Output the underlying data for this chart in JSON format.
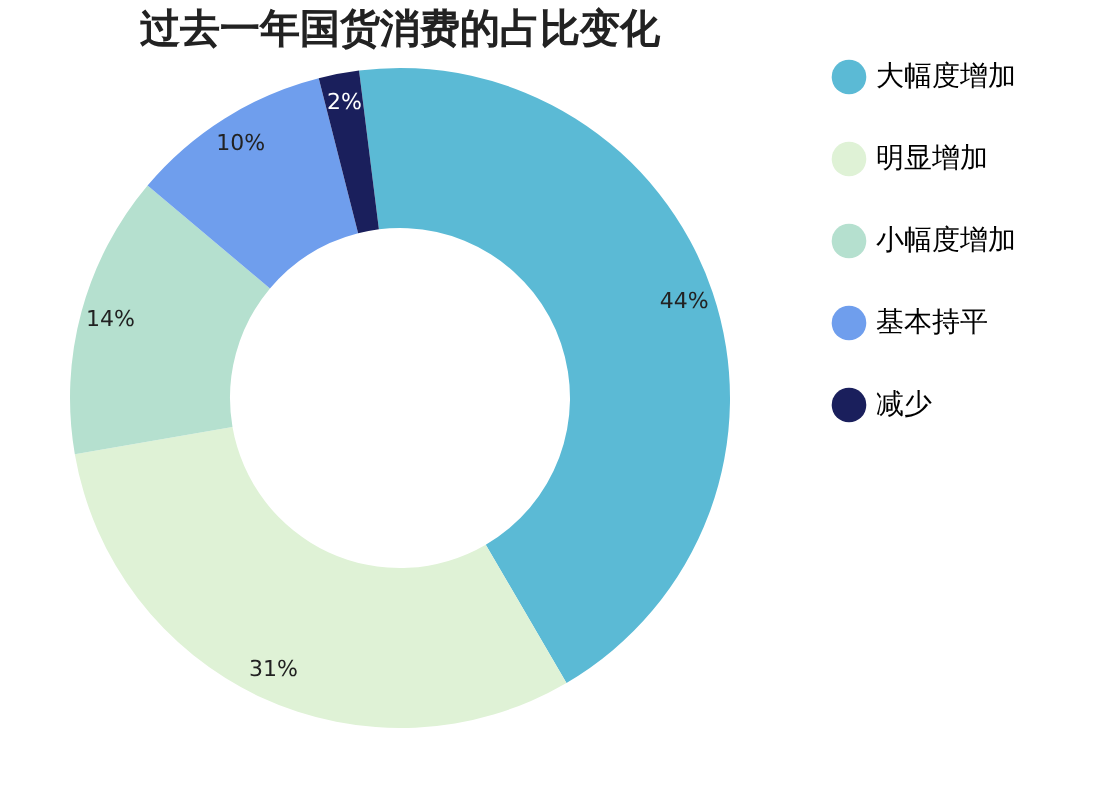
{
  "chart_data": {
    "type": "donut",
    "title": "过去一年国货消费的占比变化",
    "categories": [
      "大幅度增加",
      "明显增加",
      "小幅度增加",
      "基本持平",
      "减少"
    ],
    "values": [
      44,
      31,
      14,
      10,
      2
    ],
    "colors": [
      "#5bbad5",
      "#dff2d6",
      "#b5e0cf",
      "#6f9eed",
      "#1a1f5c"
    ],
    "value_labels": [
      "44%",
      "31%",
      "14%",
      "10%",
      "2%"
    ],
    "legend": "right"
  }
}
